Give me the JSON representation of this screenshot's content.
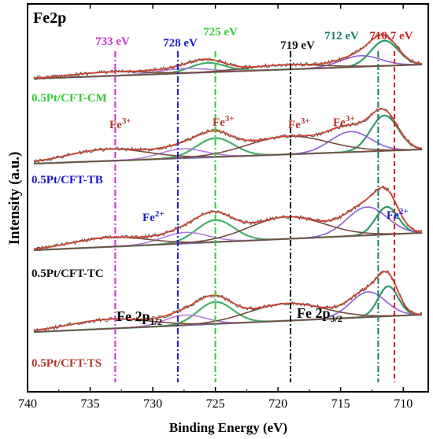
{
  "chart_data": {
    "type": "line",
    "title": "Fe2p",
    "xlabel": "Binding Energy (eV)",
    "ylabel": "Intensity (a.u.)",
    "xlim": [
      740,
      708
    ],
    "x_ticks": [
      740,
      735,
      730,
      725,
      720,
      715,
      710
    ],
    "reference_lines": [
      {
        "energy": 733,
        "label": "733 eV",
        "color": "#cc33cc",
        "style": "dash-dot"
      },
      {
        "energy": 728,
        "label": "728 eV",
        "color": "#1a1acc",
        "style": "dash-dot"
      },
      {
        "energy": 725,
        "label": "725 eV",
        "color": "#33cc33",
        "style": "dash-dot"
      },
      {
        "energy": 719,
        "label": "719 eV",
        "color": "#111111",
        "style": "dash-dot"
      },
      {
        "energy": 712,
        "label": "712 eV",
        "color": "#1a7a6a",
        "style": "dash-dot"
      },
      {
        "energy": 710.7,
        "label": "710.7 eV",
        "color": "#cc2222",
        "style": "dash"
      }
    ],
    "series": [
      {
        "name": "0.5Pt/CFT-CM",
        "color": "#33cc33"
      },
      {
        "name": "0.5Pt/CFT-TB",
        "color": "#1a1acc"
      },
      {
        "name": "0.5Pt/CFT-TC",
        "color": "#111111"
      },
      {
        "name": "0.5Pt/CFT-TS",
        "color": "#b03a2e"
      }
    ],
    "annotations": {
      "fe3": [
        {
          "base": "Fe",
          "sup": "3+",
          "energy": 732
        },
        {
          "base": "Fe",
          "sup": "3+",
          "energy": 724.5
        },
        {
          "base": "Fe",
          "sup": "3+",
          "energy": 717.5
        },
        {
          "base": "Fe",
          "sup": "3+",
          "energy": 713.5
        }
      ],
      "fe2": [
        {
          "base": "Fe",
          "sup": "2+",
          "energy": 729
        },
        {
          "base": "Fe",
          "sup": "2+",
          "energy": 709
        }
      ],
      "fe2p12": {
        "base": "Fe 2p",
        "sub": "1/2"
      },
      "fe2p32": {
        "base": "Fe 2p",
        "sub": "3/2"
      }
    },
    "grid": false
  }
}
